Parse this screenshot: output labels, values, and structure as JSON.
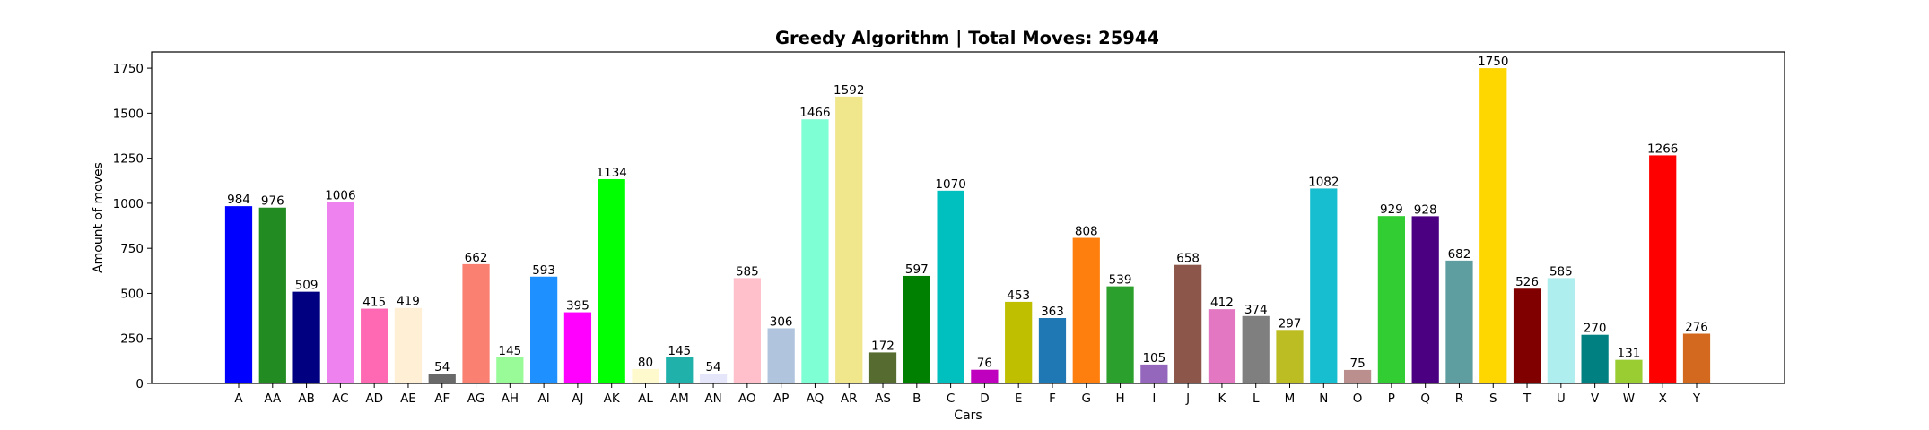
{
  "chart_data": {
    "type": "bar",
    "title": "Greedy Algorithm | Total Moves: 25944",
    "xlabel": "Cars",
    "ylabel": "Amount of moves",
    "ylim": [
      0,
      1840
    ],
    "yticks": [
      0,
      250,
      500,
      750,
      1000,
      1250,
      1500,
      1750
    ],
    "grid": false,
    "categories": [
      "A",
      "AA",
      "AB",
      "AC",
      "AD",
      "AE",
      "AF",
      "AG",
      "AH",
      "AI",
      "AJ",
      "AK",
      "AL",
      "AM",
      "AN",
      "AO",
      "AP",
      "AQ",
      "AR",
      "AS",
      "B",
      "C",
      "D",
      "E",
      "F",
      "G",
      "H",
      "I",
      "J",
      "K",
      "L",
      "M",
      "N",
      "O",
      "P",
      "Q",
      "R",
      "S",
      "T",
      "U",
      "V",
      "W",
      "X",
      "Y"
    ],
    "values": [
      984,
      976,
      509,
      1006,
      415,
      419,
      54,
      662,
      145,
      593,
      395,
      1134,
      80,
      145,
      54,
      585,
      306,
      1466,
      1592,
      172,
      597,
      1070,
      76,
      453,
      363,
      808,
      539,
      105,
      658,
      412,
      374,
      297,
      1082,
      75,
      929,
      928,
      682,
      1750,
      526,
      585,
      270,
      131,
      1266,
      276
    ],
    "colors": [
      "#0000ff",
      "#228b22",
      "#000080",
      "#ee82ee",
      "#ff69b4",
      "#ffefd5",
      "#696969",
      "#fa8072",
      "#98fb98",
      "#1e90ff",
      "#ff00ff",
      "#00ff00",
      "#fffacd",
      "#20b2aa",
      "#e6e6fa",
      "#ffc0cb",
      "#b0c4de",
      "#7fffd4",
      "#f0e68c",
      "#556b2f",
      "#008000",
      "#00bfbf",
      "#bf00bf",
      "#bfbf00",
      "#1f77b4",
      "#ff7f0e",
      "#2ca02c",
      "#9467bd",
      "#8c564b",
      "#e377c2",
      "#7f7f7f",
      "#bcbd22",
      "#17becf",
      "#bc8f8f",
      "#32cd32",
      "#4b0082",
      "#5f9ea0",
      "#ffd700",
      "#800000",
      "#afeeee",
      "#008080",
      "#9acd32",
      "#ff0000",
      "#d2691e"
    ]
  }
}
